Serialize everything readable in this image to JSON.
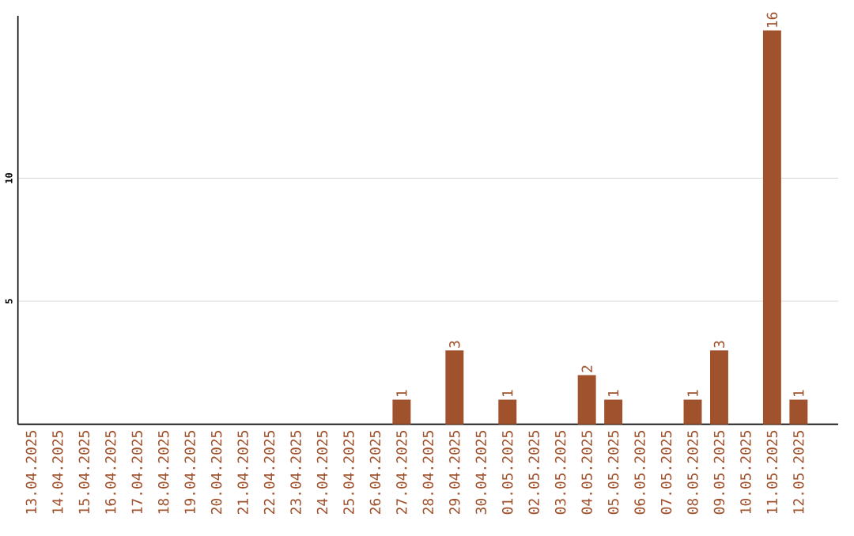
{
  "chart_data": {
    "type": "bar",
    "categories": [
      "13.04.2025",
      "14.04.2025",
      "15.04.2025",
      "16.04.2025",
      "17.04.2025",
      "18.04.2025",
      "19.04.2025",
      "20.04.2025",
      "21.04.2025",
      "22.04.2025",
      "23.04.2025",
      "24.04.2025",
      "25.04.2025",
      "26.04.2025",
      "27.04.2025",
      "28.04.2025",
      "29.04.2025",
      "30.04.2025",
      "01.05.2025",
      "02.05.2025",
      "03.05.2025",
      "04.05.2025",
      "05.05.2025",
      "06.05.2025",
      "07.05.2025",
      "08.05.2025",
      "09.05.2025",
      "10.05.2025",
      "11.05.2025",
      "12.05.2025"
    ],
    "values": [
      0,
      0,
      0,
      0,
      0,
      0,
      0,
      0,
      0,
      0,
      0,
      0,
      0,
      0,
      1,
      0,
      3,
      0,
      1,
      0,
      0,
      2,
      1,
      0,
      0,
      1,
      3,
      0,
      16,
      1
    ],
    "value_labels": [
      null,
      null,
      null,
      null,
      null,
      null,
      null,
      null,
      null,
      null,
      null,
      null,
      null,
      null,
      "1",
      null,
      "3",
      null,
      "1",
      null,
      null,
      "2",
      "1",
      null,
      null,
      "1",
      "3",
      null,
      "16",
      "1"
    ],
    "color": "#a0522d",
    "ylim": [
      0,
      16.6
    ],
    "yticks": [
      5,
      10
    ],
    "grid": "y"
  }
}
